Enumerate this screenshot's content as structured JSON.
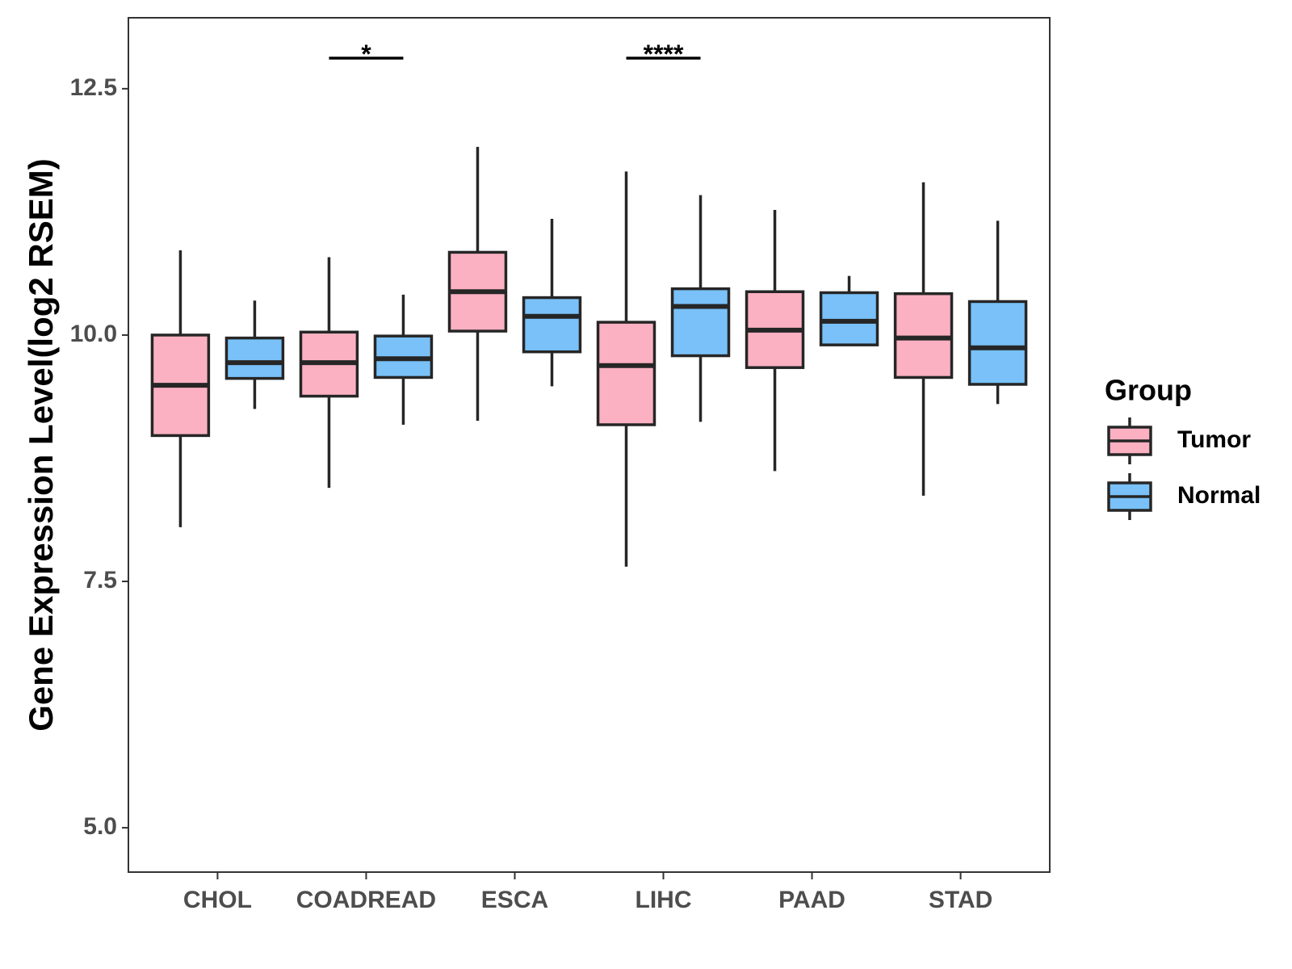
{
  "chart_data": {
    "type": "boxplot",
    "ylabel": "Gene Expression Level(log2 RSEM)",
    "xlabel": "",
    "ylim": [
      4.55,
      13.22
    ],
    "yticks": [
      5.0,
      7.5,
      10.0,
      12.5
    ],
    "ytick_labels": [
      "5.0",
      "7.5",
      "10.0",
      "12.5"
    ],
    "categories": [
      "CHOL",
      "COADREAD",
      "ESCA",
      "LIHC",
      "PAAD",
      "STAD"
    ],
    "legend": {
      "title": "Group",
      "placement": "right",
      "items": [
        {
          "name": "Tumor",
          "color": "#FBB1C2"
        },
        {
          "name": "Normal",
          "color": "#79C1F8"
        }
      ]
    },
    "series": [
      {
        "name": "Tumor",
        "color": "#FBB1C2",
        "boxes": [
          {
            "category": "CHOL",
            "min": 8.05,
            "q1": 8.98,
            "median": 9.49,
            "q3": 10.0,
            "max": 10.86
          },
          {
            "category": "COADREAD",
            "min": 8.45,
            "q1": 9.38,
            "median": 9.72,
            "q3": 10.03,
            "max": 10.79
          },
          {
            "category": "ESCA",
            "min": 9.13,
            "q1": 10.04,
            "median": 10.44,
            "q3": 10.84,
            "max": 11.91
          },
          {
            "category": "LIHC",
            "min": 7.65,
            "q1": 9.09,
            "median": 9.69,
            "q3": 10.13,
            "max": 11.66
          },
          {
            "category": "PAAD",
            "min": 8.62,
            "q1": 9.67,
            "median": 10.05,
            "q3": 10.44,
            "max": 11.27
          },
          {
            "category": "STAD",
            "min": 8.37,
            "q1": 9.57,
            "median": 9.97,
            "q3": 10.42,
            "max": 11.55
          }
        ]
      },
      {
        "name": "Normal",
        "color": "#79C1F8",
        "boxes": [
          {
            "category": "CHOL",
            "min": 9.25,
            "q1": 9.56,
            "median": 9.72,
            "q3": 9.97,
            "max": 10.35
          },
          {
            "category": "COADREAD",
            "min": 9.09,
            "q1": 9.57,
            "median": 9.76,
            "q3": 9.99,
            "max": 10.41
          },
          {
            "category": "ESCA",
            "min": 9.48,
            "q1": 9.83,
            "median": 10.19,
            "q3": 10.38,
            "max": 11.18
          },
          {
            "category": "LIHC",
            "min": 9.12,
            "q1": 9.79,
            "median": 10.29,
            "q3": 10.47,
            "max": 11.42
          },
          {
            "category": "PAAD",
            "min": 9.89,
            "q1": 9.9,
            "median": 10.14,
            "q3": 10.43,
            "max": 10.6
          },
          {
            "category": "STAD",
            "min": 9.3,
            "q1": 9.5,
            "median": 9.87,
            "q3": 10.34,
            "max": 11.16
          }
        ]
      }
    ],
    "annotations": [
      {
        "category": "COADREAD",
        "label": "*",
        "y": 12.81
      },
      {
        "category": "LIHC",
        "label": "****",
        "y": 12.81
      }
    ]
  },
  "colors": {
    "tumor": "#FBB1C2",
    "normal": "#79C1F8",
    "stroke": "#262626",
    "axis": "#333333"
  }
}
